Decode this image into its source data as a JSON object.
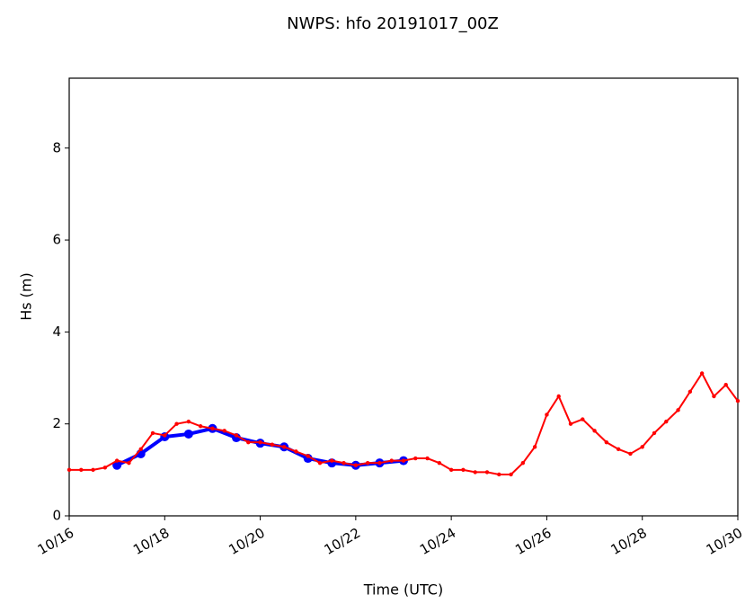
{
  "chart_data": {
    "type": "line",
    "title": "NWPS: hfo 20191017_00Z",
    "xlabel": "Time (UTC)",
    "ylabel": "Hs (m)",
    "xlim": [
      16,
      30
    ],
    "xticks": [
      {
        "value": 16,
        "label": "10/16"
      },
      {
        "value": 18,
        "label": "10/18"
      },
      {
        "value": 20,
        "label": "10/20"
      },
      {
        "value": 22,
        "label": "10/22"
      },
      {
        "value": 24,
        "label": "10/24"
      },
      {
        "value": 26,
        "label": "10/26"
      },
      {
        "value": 28,
        "label": "10/28"
      },
      {
        "value": 30,
        "label": "10/30"
      }
    ],
    "ylim": [
      0,
      9.52
    ],
    "yticks": [
      0,
      2,
      4,
      6,
      8
    ],
    "grid": false,
    "series": [
      {
        "color": "#0000ff",
        "marker": "circle",
        "x": [
          17,
          17.5,
          18,
          18.5,
          19,
          19.5,
          20,
          20.5,
          21,
          21.5,
          22,
          22.5,
          23
        ],
        "values": [
          1.1,
          1.35,
          1.72,
          1.78,
          1.9,
          1.7,
          1.58,
          1.5,
          1.25,
          1.15,
          1.1,
          1.15,
          1.2
        ]
      },
      {
        "color": "#ff0000",
        "marker": "dot",
        "x": [
          16,
          16.25,
          16.5,
          16.75,
          17,
          17.25,
          17.5,
          17.75,
          18,
          18.25,
          18.5,
          18.75,
          19,
          19.25,
          19.5,
          19.75,
          20,
          20.25,
          20.5,
          20.75,
          21,
          21.25,
          21.5,
          21.75,
          22,
          22.25,
          22.5,
          22.75,
          23,
          23.25,
          23.5,
          23.75,
          24,
          24.25,
          24.5,
          24.75,
          25,
          25.25,
          25.5,
          25.75,
          26,
          26.25,
          26.5,
          26.75,
          27,
          27.25,
          27.5,
          27.75,
          28,
          28.25,
          28.5,
          28.75,
          29,
          29.25,
          29.5,
          29.75,
          30
        ],
        "values": [
          1.0,
          1.0,
          1.0,
          1.05,
          1.2,
          1.15,
          1.45,
          1.8,
          1.75,
          2.0,
          2.05,
          1.95,
          1.9,
          1.85,
          1.75,
          1.6,
          1.6,
          1.55,
          1.5,
          1.4,
          1.3,
          1.15,
          1.2,
          1.15,
          1.1,
          1.15,
          1.15,
          1.2,
          1.2,
          1.25,
          1.25,
          1.15,
          1.0,
          1.0,
          0.95,
          0.95,
          0.9,
          0.9,
          1.15,
          1.5,
          2.2,
          2.6,
          2.0,
          2.1,
          1.85,
          1.6,
          1.45,
          1.35,
          1.5,
          1.8,
          2.05,
          2.3,
          2.7,
          3.1,
          2.6,
          2.85,
          2.5
        ]
      }
    ]
  }
}
